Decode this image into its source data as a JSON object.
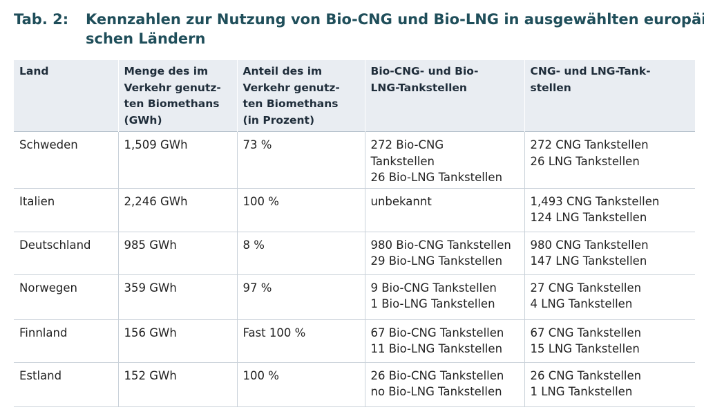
{
  "caption": {
    "number": "Tab. 2:",
    "title_line1": "Kennzahlen zur Nutzung von Bio-CNG und Bio-LNG in ausgewählten europäi-",
    "title_line2": "schen Ländern"
  },
  "table": {
    "headers": [
      [
        "Land"
      ],
      [
        "Menge des im",
        "Verkehr genutz-",
        "ten Biomethans",
        "(GWh)"
      ],
      [
        "Anteil des im",
        "Verkehr genutz-",
        "ten Biomethans",
        "(in Prozent)"
      ],
      [
        "Bio-CNG- und Bio-",
        "LNG-Tankstellen"
      ],
      [
        "CNG- und LNG-Tank-",
        "stellen"
      ]
    ],
    "rows": [
      {
        "land": "Schweden",
        "menge": "1,509 GWh",
        "anteil": "73 %",
        "bio_tankstellen": [
          "272 Bio-CNG",
          "Tankstellen",
          "26 Bio-LNG Tankstellen"
        ],
        "tankstellen": [
          "272 CNG Tankstellen",
          "26 LNG Tankstellen"
        ]
      },
      {
        "land": "Italien",
        "menge": "2,246 GWh",
        "anteil": "100 %",
        "bio_tankstellen": [
          "unbekannt"
        ],
        "tankstellen": [
          "1,493 CNG Tankstellen",
          "124 LNG Tankstellen"
        ]
      },
      {
        "land": "Deutschland",
        "menge": "985 GWh",
        "anteil": "8 %",
        "bio_tankstellen": [
          "980 Bio-CNG Tankstellen",
          "29 Bio-LNG Tankstellen"
        ],
        "tankstellen": [
          "980 CNG Tankstellen",
          "147 LNG Tankstellen"
        ]
      },
      {
        "land": "Norwegen",
        "menge": "359 GWh",
        "anteil": "97 %",
        "bio_tankstellen": [
          "9 Bio-CNG Tankstellen",
          "1 Bio-LNG Tankstellen"
        ],
        "tankstellen": [
          "27 CNG Tankstellen",
          "4 LNG Tankstellen"
        ]
      },
      {
        "land": "Finnland",
        "menge": "156 GWh",
        "anteil": "Fast 100 %",
        "bio_tankstellen": [
          "67 Bio-CNG Tankstellen",
          "11 Bio-LNG Tankstellen"
        ],
        "tankstellen": [
          "67 CNG Tankstellen",
          "15 LNG Tankstellen"
        ]
      },
      {
        "land": "Estland",
        "menge": "152 GWh",
        "anteil": "100 %",
        "bio_tankstellen": [
          "26 Bio-CNG Tankstellen",
          "no Bio-LNG Tankstellen"
        ],
        "tankstellen": [
          "26 CNG Tankstellen",
          "1 LNG Tankstellen"
        ]
      }
    ]
  },
  "colors": {
    "caption_text": "#1f4e5a",
    "header_background": "#e9edf2",
    "grid_line": "#c9d1d9"
  }
}
